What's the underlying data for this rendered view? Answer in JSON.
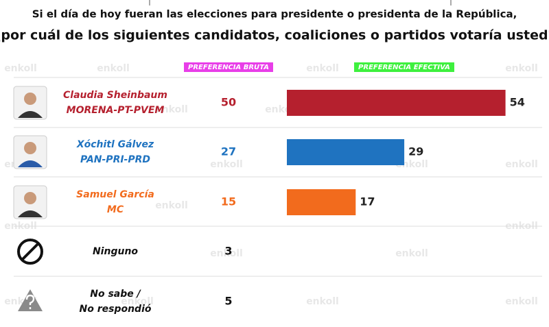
{
  "chart_data": {
    "type": "bar",
    "title": [
      "Si el día de hoy fueran las elecciones para presidente o presidenta de la República,",
      "¿por cuál de los siguientes candidatos, coaliciones o partidos votaría usted?"
    ],
    "headers": {
      "bruta": "PREFERENCIA BRUTA",
      "efectiva": "PREFERENCIA EFECTIVA"
    },
    "watermark": "enkoll",
    "xlim": [
      0,
      60
    ],
    "rows": [
      {
        "label": [
          "Claudia Sheinbaum",
          "MORENA-PT-PVEM"
        ],
        "color": "#b5202e",
        "bruta": 50,
        "efectiva": 54
      },
      {
        "label": [
          "Xóchitl Gálvez",
          "PAN-PRI-PRD"
        ],
        "color": "#1f73c0",
        "bruta": 27,
        "efectiva": 29
      },
      {
        "label": [
          "Samuel García",
          "MC"
        ],
        "color": "#f26b1d",
        "bruta": 15,
        "efectiva": 17
      },
      {
        "label": [
          "Ninguno"
        ],
        "color": "#111111",
        "bruta": 3
      },
      {
        "label": [
          "No sabe /",
          "No respondió"
        ],
        "color": "#111111",
        "bruta": 5
      }
    ]
  }
}
